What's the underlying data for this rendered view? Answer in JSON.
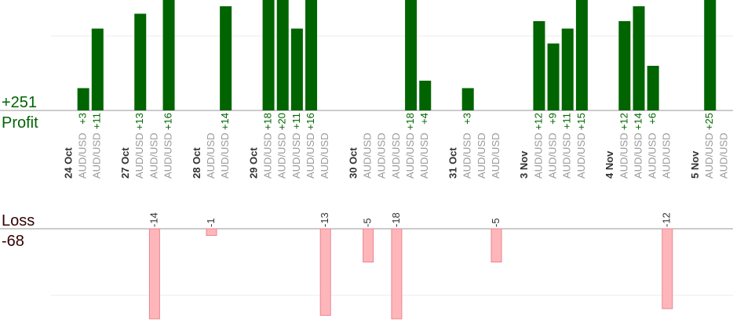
{
  "summary": {
    "profit_total": 251,
    "profit_total_label": "+251",
    "profit_label": "Profit",
    "loss_label": "Loss",
    "loss_total": -68
  },
  "profit_grid": 10,
  "loss_grid": -10,
  "days": [
    {
      "date": "24 Oct",
      "trades": [
        {
          "pair": "AUD/USD",
          "value": 3,
          "label": "+3"
        },
        {
          "pair": "AUD/USD",
          "value": 11,
          "label": "+11"
        }
      ]
    },
    {
      "date": "27 Oct",
      "trades": [
        {
          "pair": "AUD/USD",
          "value": 13,
          "label": "+13"
        },
        {
          "pair": "AUD/USD",
          "value": -14
        },
        {
          "pair": "AUD/USD",
          "value": 16,
          "label": "+16"
        }
      ]
    },
    {
      "date": "28 Oct",
      "trades": [
        {
          "pair": "AUD/USD",
          "value": -1
        },
        {
          "pair": "AUD/USD",
          "value": 14,
          "label": "+14"
        }
      ]
    },
    {
      "date": "29 Oct",
      "trades": [
        {
          "pair": "AUD/USD",
          "value": 18,
          "label": "+18"
        },
        {
          "pair": "AUD/USD",
          "value": 20,
          "label": "+20"
        },
        {
          "pair": "AUD/USD",
          "value": 11,
          "label": "+11"
        },
        {
          "pair": "AUD/USD",
          "value": 16,
          "label": "+16"
        },
        {
          "pair": "AUD/USD",
          "value": -13
        }
      ]
    },
    {
      "date": "30 Oct",
      "trades": [
        {
          "pair": "AUD/USD",
          "value": -5
        },
        {
          "pair": "AUD/USD",
          "value": null
        },
        {
          "pair": "AUD/USD",
          "value": -18
        },
        {
          "pair": "AUD/USD",
          "value": 18,
          "label": "+18"
        },
        {
          "pair": "AUD/USD",
          "value": 4,
          "label": "+4"
        }
      ]
    },
    {
      "date": "31 Oct",
      "trades": [
        {
          "pair": "AUD/USD",
          "value": 3,
          "label": "+3"
        },
        {
          "pair": "AUD/USD",
          "value": null
        },
        {
          "pair": "AUD/USD",
          "value": -5
        }
      ]
    },
    {
      "date": "3 Nov",
      "trades": [
        {
          "pair": "AUD/USD",
          "value": 12,
          "label": "+12"
        },
        {
          "pair": "AUD/USD",
          "value": 9,
          "label": "+9"
        },
        {
          "pair": "AUD/USD",
          "value": 11,
          "label": "+11"
        },
        {
          "pair": "AUD/USD",
          "value": 15,
          "label": "+15"
        }
      ]
    },
    {
      "date": "4 Nov",
      "trades": [
        {
          "pair": "AUD/USD",
          "value": 12,
          "label": "+12"
        },
        {
          "pair": "AUD/USD",
          "value": 14,
          "label": "+14"
        },
        {
          "pair": "AUD/USD",
          "value": 6,
          "label": "+6"
        },
        {
          "pair": "AUD/USD",
          "value": -12
        }
      ]
    },
    {
      "date": "5 Nov",
      "trades": [
        {
          "pair": "AUD/USD",
          "value": 25,
          "label": "+25"
        },
        {
          "pair": "AUD/USD",
          "value": null
        }
      ]
    }
  ]
}
